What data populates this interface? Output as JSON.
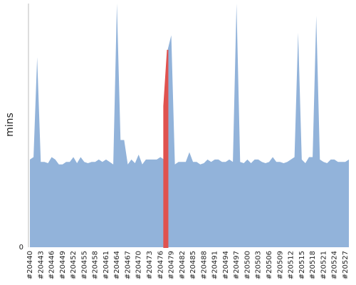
{
  "chart_data": {
    "type": "area",
    "ylabel": "mins",
    "categories": [
      "#20440",
      null,
      null,
      "#20443",
      null,
      null,
      "#20446",
      null,
      null,
      "#20449",
      null,
      null,
      "#20452",
      null,
      null,
      "#20455",
      null,
      null,
      "#20458",
      null,
      null,
      "#20461",
      null,
      null,
      "#20464",
      null,
      null,
      "#20467",
      null,
      null,
      "#20470",
      null,
      null,
      "#20473",
      null,
      null,
      "#20476",
      null,
      null,
      "#20479",
      null,
      null,
      "#20482",
      null,
      null,
      "#20485",
      null,
      null,
      "#20488",
      null,
      null,
      "#20491",
      null,
      null,
      "#20494",
      null,
      null,
      "#20497",
      null,
      null,
      "#20500",
      null,
      null,
      "#20503",
      null,
      null,
      "#20506",
      null,
      null,
      "#20509",
      null,
      null,
      "#20512",
      null,
      null,
      "#20515",
      null,
      null,
      "#20518",
      null,
      null,
      "#20521",
      null,
      null,
      "#20524",
      null,
      null,
      "#20527",
      null
    ],
    "series": [
      {
        "color": "#92b3da",
        "values": [
          36,
          37,
          78,
          35,
          35,
          34.5,
          37,
          36,
          34,
          34,
          35,
          35,
          37,
          34.5,
          37,
          35,
          34.5,
          35,
          35,
          36,
          35,
          36,
          35,
          34,
          100,
          44,
          44,
          34,
          36,
          34.5,
          38,
          34,
          36,
          36,
          36,
          36,
          37,
          36,
          81,
          87,
          34,
          35,
          35,
          35,
          39,
          35,
          35,
          34,
          34.5,
          36,
          35,
          36,
          36,
          35,
          35,
          36,
          35,
          100,
          35,
          34.5,
          36,
          34.5,
          36,
          36,
          35,
          34.5,
          35,
          37,
          35,
          35,
          34.5,
          35,
          36,
          37,
          88,
          36,
          34.5,
          37,
          37,
          95,
          36,
          35,
          34.5,
          36,
          36,
          35,
          35,
          35,
          36
        ]
      },
      {
        "color": "#e0524f",
        "values": [
          null,
          null,
          null,
          null,
          null,
          null,
          null,
          null,
          null,
          null,
          null,
          null,
          null,
          null,
          null,
          null,
          null,
          null,
          null,
          null,
          null,
          null,
          null,
          null,
          null,
          null,
          null,
          null,
          null,
          null,
          null,
          null,
          null,
          null,
          null,
          null,
          null,
          58,
          81,
          null,
          null,
          null,
          null,
          null,
          null,
          null,
          null,
          null,
          null,
          null,
          null,
          null,
          null,
          null,
          null,
          null,
          null,
          null,
          null,
          null,
          null,
          null,
          null,
          null,
          null,
          null,
          null,
          null,
          null,
          null,
          null,
          null,
          null,
          null,
          null,
          null,
          null,
          null,
          null,
          null,
          null,
          null,
          null,
          null,
          null,
          null,
          null,
          null,
          null
        ]
      }
    ],
    "ylim": [
      0,
      100
    ],
    "yticks": [
      0
    ]
  }
}
